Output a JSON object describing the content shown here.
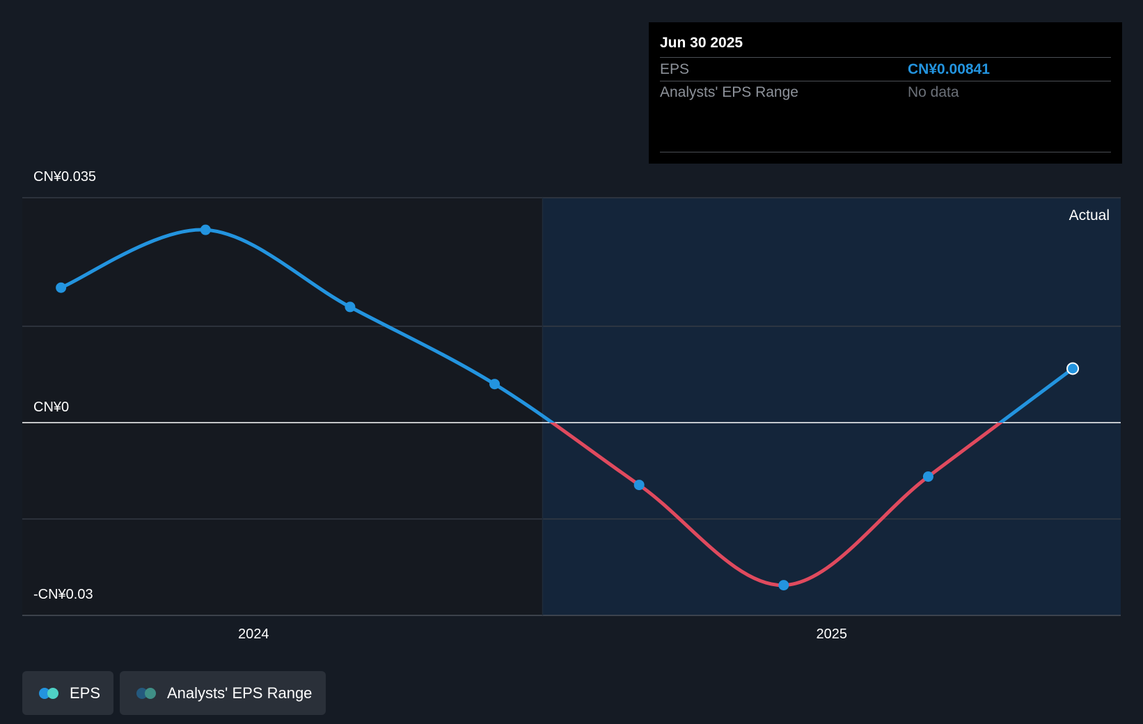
{
  "chart_data": {
    "type": "line",
    "title": "",
    "xlabel": "",
    "ylabel": "",
    "ylim": [
      -0.03,
      0.035
    ],
    "y_tick_labels": [
      "CN¥0.035",
      "CN¥0",
      "-CN¥0.03"
    ],
    "y_tick_values": [
      0.035,
      0,
      -0.03
    ],
    "x_tick_labels": [
      "2024",
      "2025"
    ],
    "x_tick_values": [
      2024.0,
      2025.0
    ],
    "xlim": [
      2023.6,
      2025.5
    ],
    "actual_region_label": "Actual",
    "actual_region_start": 2024.5,
    "colors": {
      "positive": "#2394df",
      "negative": "#e04a5e",
      "zero_line": "#ffffff",
      "grid": "#353b44",
      "actual_bg": "#14253a",
      "past_bg": "#151920"
    },
    "series": [
      {
        "name": "EPS",
        "x": [
          2023.667,
          2023.917,
          2024.167,
          2024.417,
          2024.667,
          2024.917,
          2025.167,
          2025.417
        ],
        "values": [
          0.021,
          0.03,
          0.018,
          0.006,
          -0.0097,
          -0.0253,
          -0.0084,
          0.00841
        ]
      }
    ]
  },
  "tooltip": {
    "date": "Jun 30 2025",
    "eps_label": "EPS",
    "eps_value": "CN¥0.00841",
    "range_label": "Analysts' EPS Range",
    "range_value": "No data",
    "eps_value_color": "#2394df",
    "range_value_color": "#6b7078"
  },
  "legend": {
    "items": [
      {
        "label": "EPS",
        "colors": [
          "#2394df",
          "#4fd1c5"
        ]
      },
      {
        "label": "Analysts' EPS Range",
        "colors": [
          "#24597e",
          "#3f8f86"
        ]
      }
    ]
  }
}
